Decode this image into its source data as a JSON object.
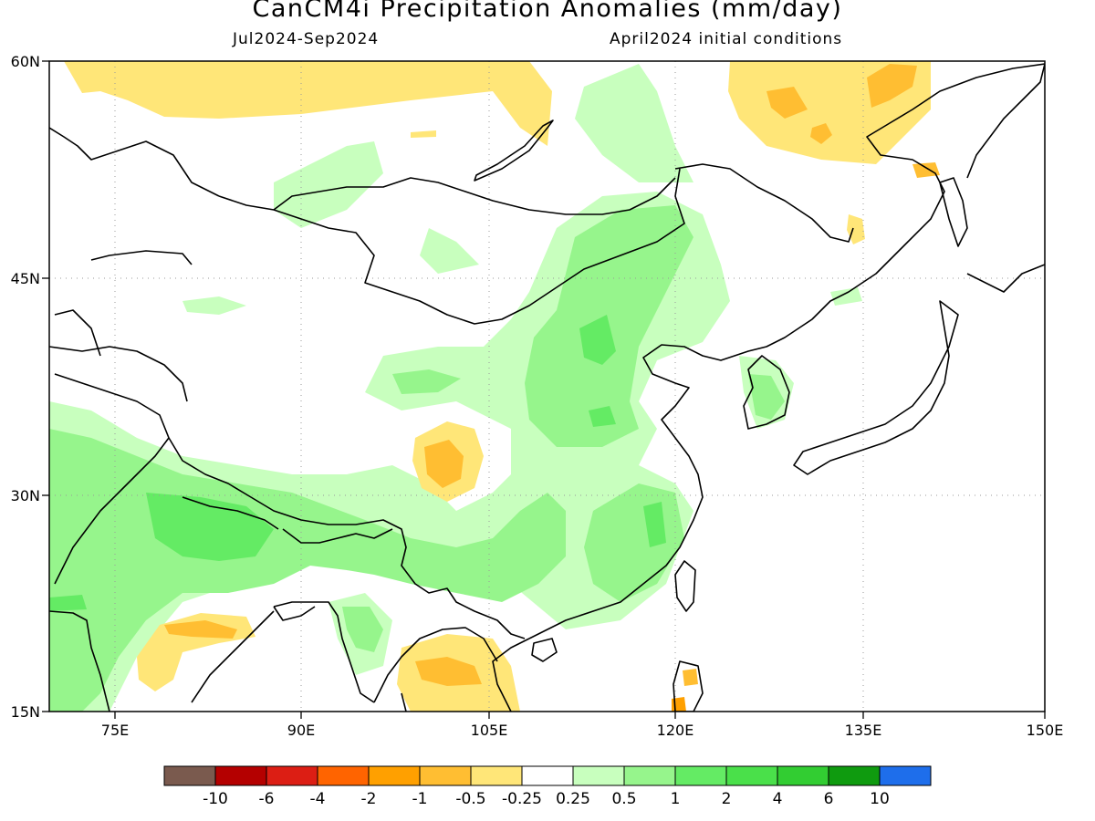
{
  "title": "CanCM4i Precipitation Anomalies (mm/day)",
  "subtitle_left": "Jul2024-Sep2024",
  "subtitle_right": "April2024 initial conditions",
  "lat_labels": [
    "60N",
    "45N",
    "30N",
    "15N"
  ],
  "lon_labels": [
    "75E",
    "90E",
    "105E",
    "120E",
    "135E",
    "150E"
  ],
  "colorbar": {
    "labels": [
      "-10",
      "-6",
      "-4",
      "-2",
      "-1",
      "-0.5",
      "-0.25",
      "0.25",
      "0.5",
      "1",
      "2",
      "4",
      "6",
      "10"
    ],
    "colors": [
      "#7a5a4e",
      "#b40000",
      "#dc1e14",
      "#ff6400",
      "#ffa000",
      "#ffbe32",
      "#ffe678",
      "#ffffff",
      "#c8ffbe",
      "#96f58c",
      "#64eb64",
      "#4ae04a",
      "#32cd32",
      "#0f9b0f",
      "#1e6eeb"
    ]
  },
  "colors": {
    "light_green": "#c8ffbe",
    "green": "#96f58c",
    "mid_green": "#64eb64",
    "light_yellow": "#ffe678",
    "yellow_orange": "#ffbe32",
    "orange": "#ffa000"
  }
}
